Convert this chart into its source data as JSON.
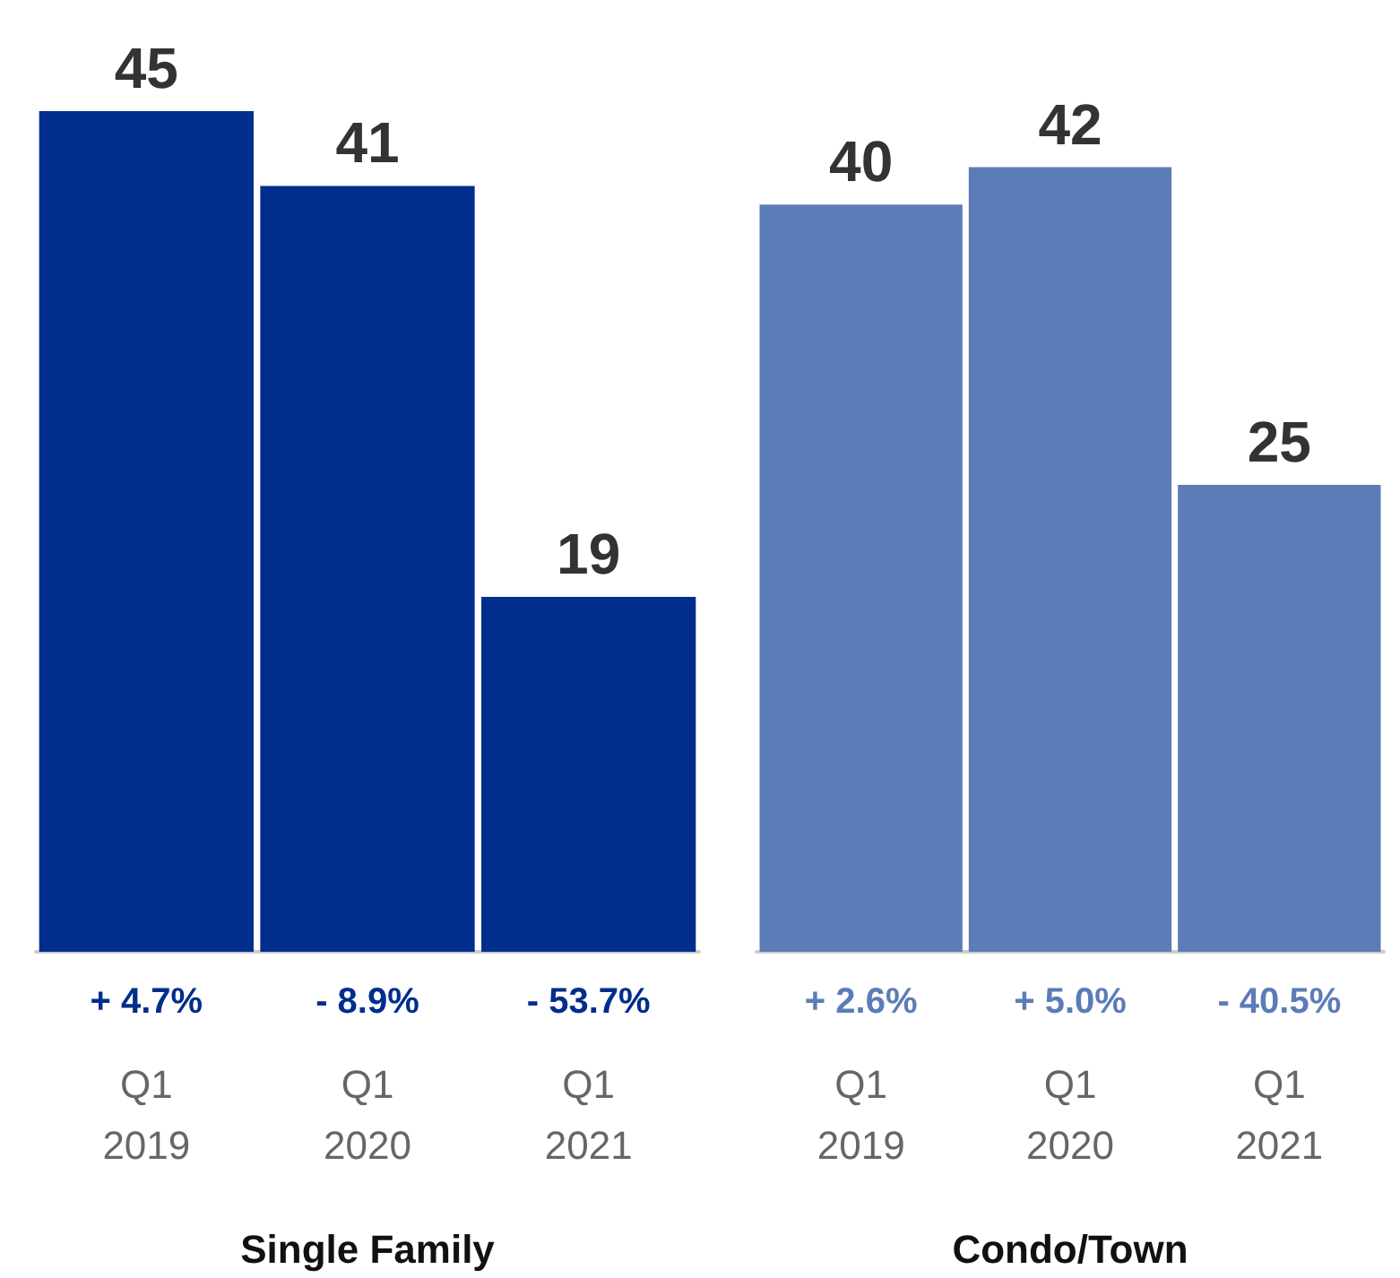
{
  "chart_data": [
    {
      "type": "bar",
      "xlabel": "Single Family",
      "categories": [
        "Q1\n2019",
        "Q1\n2020",
        "Q1\n2021"
      ],
      "values": [
        45,
        41,
        19
      ],
      "color": "#012d8c",
      "data_labels": true,
      "annotations": [
        "+ 4.7%",
        "- 8.9%",
        "- 53.7%"
      ]
    },
    {
      "type": "bar",
      "xlabel": "Condo/Town",
      "categories": [
        "Q1\n2019",
        "Q1\n2020",
        "Q1\n2021"
      ],
      "values": [
        40,
        42,
        25
      ],
      "color": "#5c7cb8",
      "data_labels": true,
      "annotations": [
        "+ 2.6%",
        "+ 5.0%",
        "- 40.5%"
      ]
    }
  ]
}
